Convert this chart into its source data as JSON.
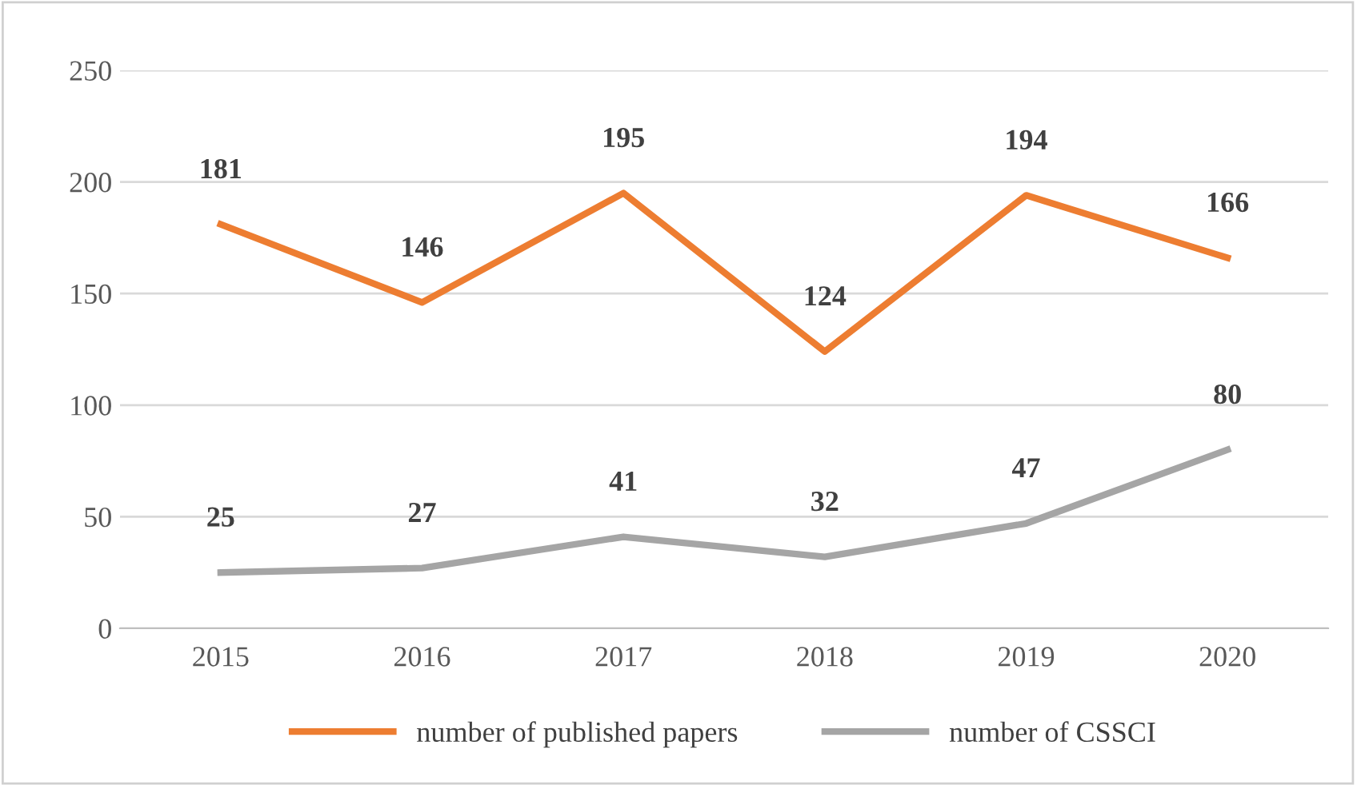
{
  "chart_data": {
    "type": "line",
    "categories": [
      "2015",
      "2016",
      "2017",
      "2018",
      "2019",
      "2020"
    ],
    "series": [
      {
        "name": "number of published papers",
        "color": "#ed7d31",
        "values": [
          181,
          146,
          195,
          124,
          194,
          166
        ]
      },
      {
        "name": "number of CSSCI",
        "color": "#a5a5a5",
        "values": [
          25,
          27,
          41,
          32,
          47,
          80
        ]
      }
    ],
    "ylim": [
      0,
      250
    ],
    "yticks": [
      0,
      50,
      100,
      150,
      200,
      250
    ],
    "grid": "y",
    "legend": "bottom",
    "data_labels": true,
    "marker": "none",
    "line_style": "solid"
  }
}
